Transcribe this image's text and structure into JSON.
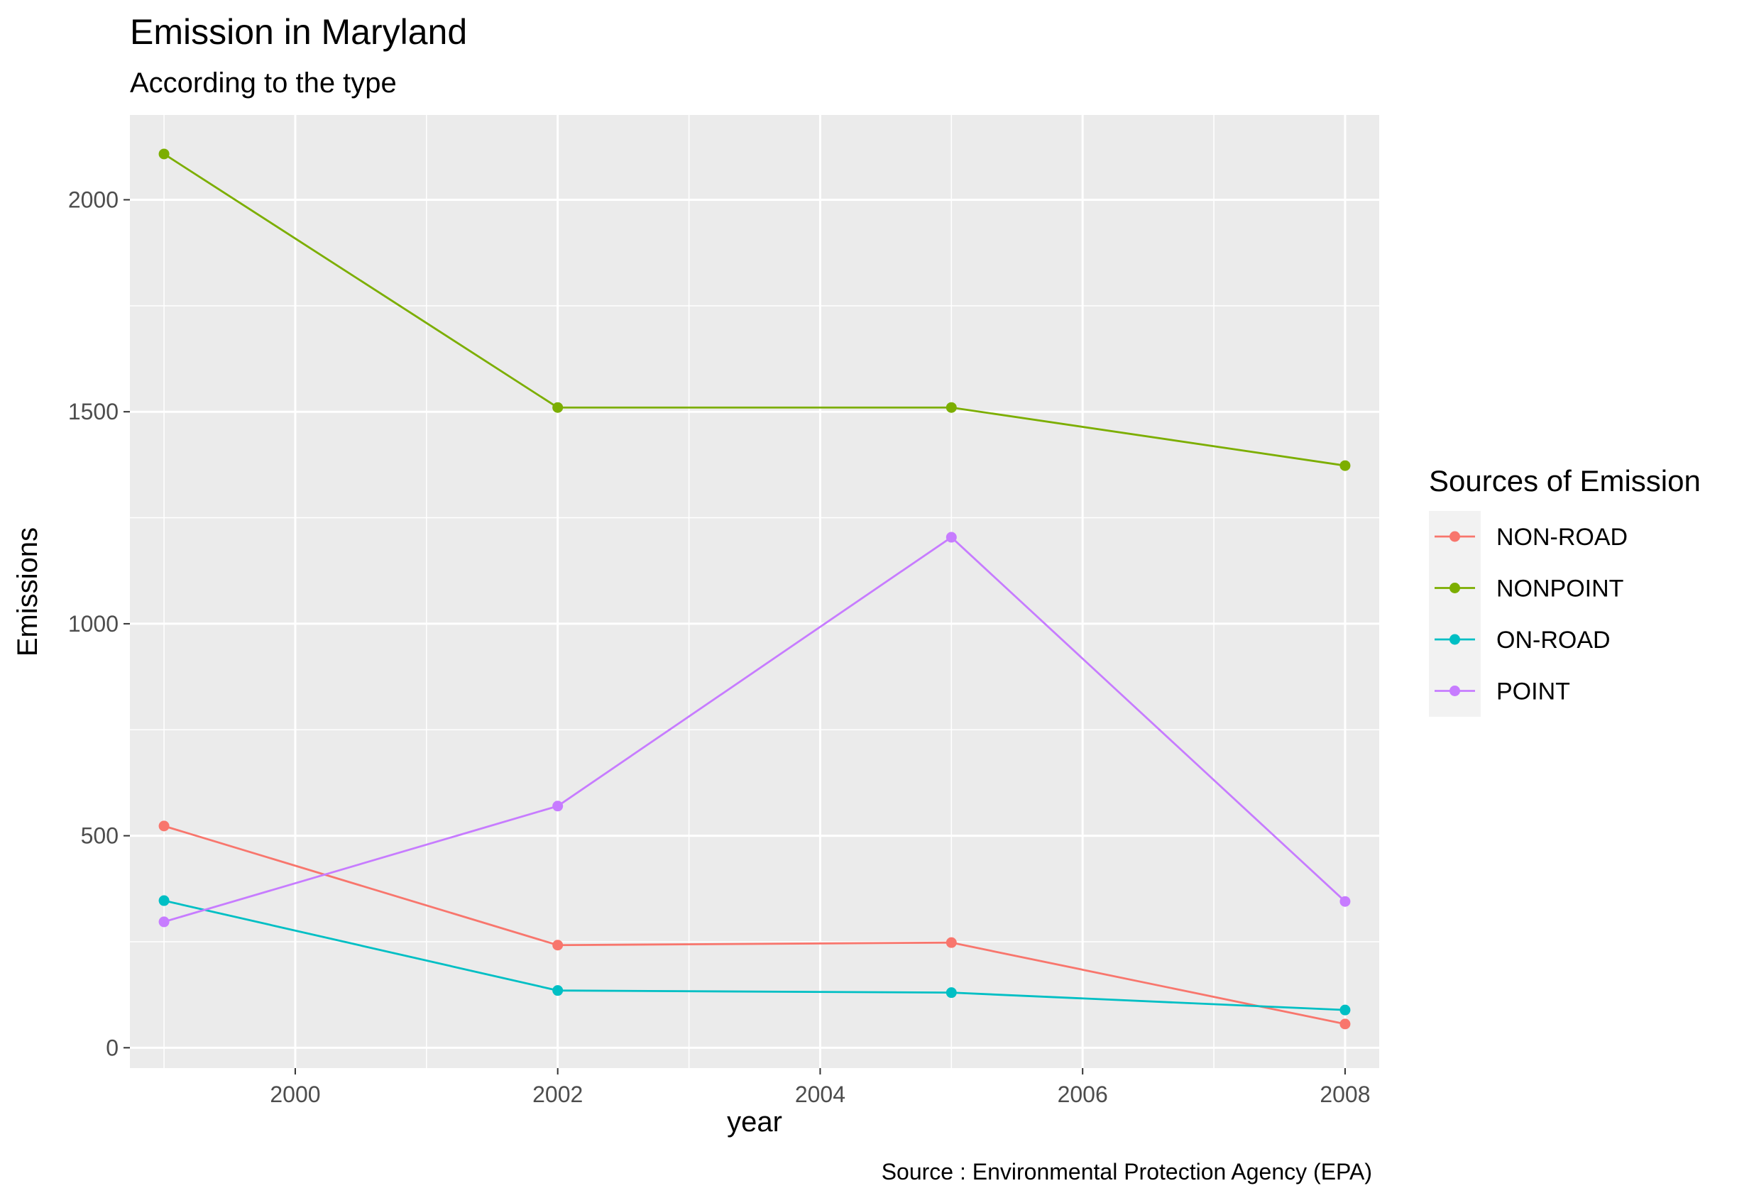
{
  "chart_data": {
    "type": "line",
    "title": "Emission in Maryland",
    "subtitle": "According to the type",
    "xlabel": "year",
    "ylabel": "Emissions",
    "caption": "Source : Environmental Protection Agency (EPA)",
    "legend_title": "Sources of Emission",
    "legend_position": "right",
    "grid": true,
    "xlim": [
      1998.74,
      2008.26
    ],
    "ylim": [
      -48,
      2200
    ],
    "x_ticks": [
      2000,
      2002,
      2004,
      2006,
      2008
    ],
    "y_ticks": [
      0,
      500,
      1000,
      1500,
      2000
    ],
    "x": [
      1999,
      2002,
      2005,
      2008
    ],
    "series": [
      {
        "name": "NON-ROAD",
        "color": "#F8766D",
        "values": [
          523,
          242,
          248,
          56
        ]
      },
      {
        "name": "NONPOINT",
        "color": "#7CAE00",
        "values": [
          2108,
          1510,
          1510,
          1373
        ]
      },
      {
        "name": "ON-ROAD",
        "color": "#00BFC4",
        "values": [
          347,
          135,
          130,
          89
        ]
      },
      {
        "name": "POINT",
        "color": "#C77CFF",
        "values": [
          297,
          570,
          1204,
          345
        ]
      }
    ]
  }
}
